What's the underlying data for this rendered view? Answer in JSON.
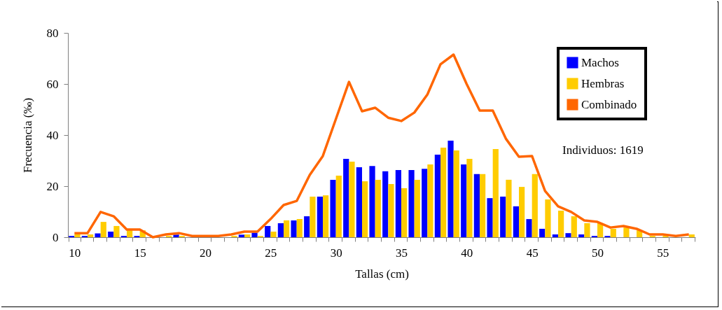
{
  "chart_data": {
    "type": "bar",
    "xlabel": "Tallas (cm)",
    "ylabel": "Frecuencia (‰)",
    "categories": [
      "10",
      null,
      null,
      null,
      null,
      "15",
      null,
      null,
      null,
      null,
      "20",
      null,
      null,
      null,
      null,
      "25",
      null,
      null,
      null,
      null,
      "30",
      null,
      null,
      null,
      null,
      "35",
      null,
      null,
      null,
      null,
      "40",
      null,
      null,
      null,
      null,
      "45",
      null,
      null,
      null,
      null,
      "50",
      null,
      null,
      null,
      null,
      "55",
      null,
      null
    ],
    "series": [
      {
        "name": "Machos",
        "color": "#0000ff",
        "values": [
          0.5,
          0.5,
          1.5,
          2.2,
          0.5,
          0.5,
          0,
          0,
          1,
          0,
          0,
          0,
          0,
          1,
          1.8,
          4.4,
          5.5,
          6.6,
          8.2,
          15.9,
          22.5,
          30.7,
          27.4,
          27.9,
          25.8,
          26.3,
          26.3,
          26.8,
          32.3,
          37.8,
          28.5,
          24.7,
          15.3,
          15.9,
          12.1,
          7.1,
          3.3,
          1.1,
          1.6,
          1.1,
          0.5,
          0.5,
          0,
          0,
          0,
          0,
          0,
          0
        ]
      },
      {
        "name": "Hembras",
        "color": "#ffcc00",
        "values": [
          1.1,
          1.1,
          6.0,
          4.4,
          2.7,
          2.7,
          0,
          0.5,
          0.5,
          0,
          0,
          0,
          0.5,
          1.1,
          0.5,
          2.2,
          6.6,
          7.1,
          15.9,
          16.4,
          24.1,
          29.6,
          21.9,
          22.5,
          20.8,
          19.2,
          22.5,
          28.5,
          35.1,
          34.0,
          30.7,
          24.7,
          34.5,
          22.5,
          19.7,
          24.7,
          14.8,
          10.4,
          8.2,
          5.5,
          5.5,
          3.3,
          3.8,
          2.7,
          0.5,
          0.5,
          null,
          1.1
        ]
      },
      {
        "name": "Combinado",
        "type": "line",
        "color": "#ff6600",
        "values": [
          1.6,
          1.6,
          9.9,
          8.2,
          3.0,
          3.0,
          0,
          1.1,
          1.6,
          0.5,
          0.5,
          0.5,
          1.1,
          2.2,
          2.2,
          7.1,
          12.6,
          14.2,
          24.4,
          31.8,
          46.3,
          60.8,
          49.3,
          50.7,
          46.8,
          45.5,
          48.8,
          55.9,
          67.7,
          71.5,
          60.0,
          49.6,
          49.6,
          38.6,
          31.5,
          31.8,
          18.1,
          12.1,
          9.9,
          6.6,
          6.0,
          3.8,
          4.4,
          3.3,
          1.1,
          1.1,
          0.5,
          1.1
        ]
      }
    ],
    "ylim": [
      0,
      80
    ],
    "yticks": [
      0,
      20,
      40,
      60,
      80
    ],
    "legend": "top right",
    "annotations": [
      "Individuos: 1619"
    ]
  }
}
